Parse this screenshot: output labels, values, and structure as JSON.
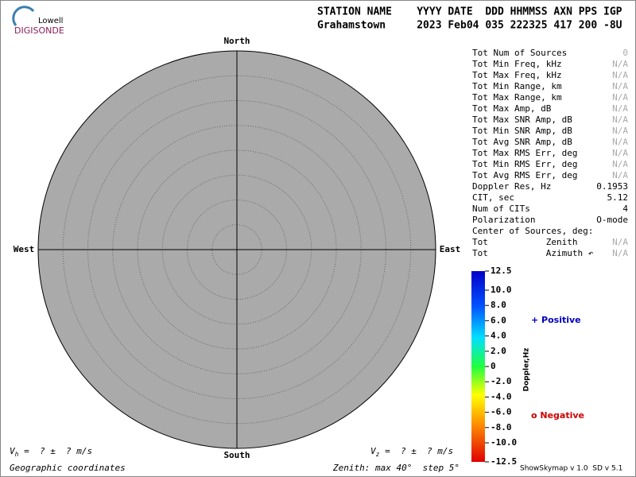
{
  "logo": {
    "top": "Lowell",
    "bottom": "DIGISONDE"
  },
  "header": {
    "line1": "STATION NAME    YYYY DATE  DDD HHMMSS AXN PPS IGP",
    "line2": "Grahamstown     2023 Feb04 035 222325 417 200 -8U"
  },
  "compass": {
    "north": "North",
    "south": "South",
    "west": "West",
    "east": "East"
  },
  "rings": {
    "max": 40,
    "step": 5
  },
  "stats": [
    {
      "label": "Tot Num of Sources",
      "value": "0",
      "muted": true
    },
    {
      "label": "Tot Min Freq, kHz",
      "value": "N/A",
      "muted": true
    },
    {
      "label": "Tot Max Freq, kHz",
      "value": "N/A",
      "muted": true
    },
    {
      "label": "Tot Min Range, km",
      "value": "N/A",
      "muted": true
    },
    {
      "label": "Tot Max Range, km",
      "value": "N/A",
      "muted": true
    },
    {
      "label": "Tot Max Amp, dB",
      "value": "N/A",
      "muted": true
    },
    {
      "label": "Tot Max SNR Amp, dB",
      "value": "N/A",
      "muted": true
    },
    {
      "label": "Tot Min SNR Amp, dB",
      "value": "N/A",
      "muted": true
    },
    {
      "label": "Tot Avg SNR Amp, dB",
      "value": "N/A",
      "muted": true
    },
    {
      "label": "Tot Max RMS Err, deg",
      "value": "N/A",
      "muted": true
    },
    {
      "label": "Tot Min RMS Err, deg",
      "value": "N/A",
      "muted": true
    },
    {
      "label": "Tot Avg RMS Err, deg",
      "value": "N/A",
      "muted": true
    },
    {
      "label": "Doppler Res, Hz",
      "value": "0.1953",
      "muted": false
    },
    {
      "label": "CIT, sec",
      "value": "5.12",
      "muted": false
    },
    {
      "label": "Num of CITs",
      "value": "4",
      "muted": false
    },
    {
      "label": "Polarization",
      "value": "O-mode",
      "muted": false
    },
    {
      "label": "Center of Sources, deg:"
    },
    {
      "label": "Tot           Zenith",
      "value": "N/A",
      "muted": true
    },
    {
      "label": "Tot           Azimuth ↶",
      "value": "N/A",
      "muted": true
    }
  ],
  "colorbar": {
    "title": "Doppler,Hz",
    "range": [
      -12.5,
      12.5
    ],
    "ticks": [
      12.5,
      {
        "value": 10,
        "label": "10.0"
      },
      {
        "value": 8,
        "label": "8.0"
      },
      {
        "value": 6,
        "label": "6.0"
      },
      {
        "value": 4,
        "label": "4.0"
      },
      {
        "value": 2,
        "label": "2.0"
      },
      0,
      {
        "value": -2,
        "label": "-2.0"
      },
      {
        "value": -4,
        "label": "-4.0"
      },
      {
        "value": -6,
        "label": "-6.0"
      },
      {
        "value": -8,
        "label": "-8.0"
      },
      {
        "value": -10,
        "label": "-10.0"
      },
      -12.5
    ]
  },
  "legend": {
    "positive": "+ Positive",
    "negative": "o Negative"
  },
  "velocity": {
    "h_symbol": "V",
    "h_sub": "h",
    "h_text": " =  ? ±  ? m/s",
    "z_symbol": "V",
    "z_sub": "z",
    "z_text": " =  ? ±  ? m/s"
  },
  "footer": {
    "left": "Geographic coordinates",
    "middle": "Zenith: max 40°  step 5°",
    "right": "ShowSkymap v 1.0  SD v 5.1"
  }
}
